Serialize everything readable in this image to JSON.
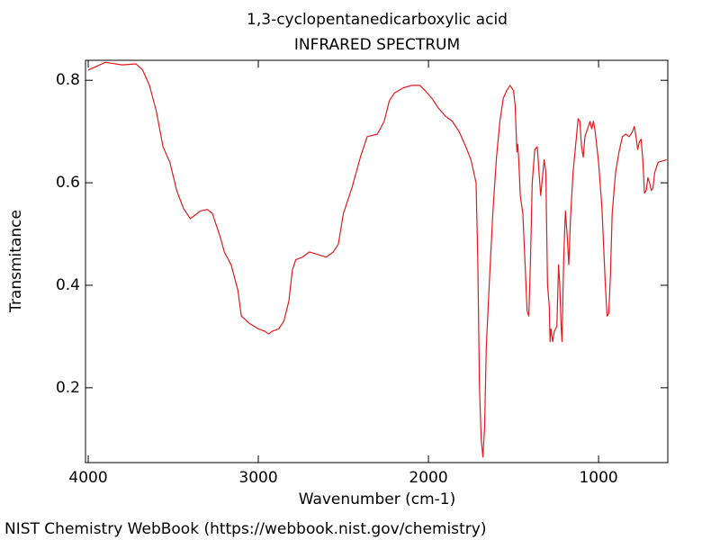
{
  "chart_data": {
    "type": "line",
    "title": "1,3-cyclopentanedicarboxylic acid",
    "subtitle": "INFRARED SPECTRUM",
    "x_label": "Wavenumber (cm-1)",
    "y_label": "Transmitance",
    "color": "#e41a1c",
    "xlim": [
      4016,
      593
    ],
    "ylim": [
      0.054,
      0.839
    ],
    "xticks": [
      4000,
      3000,
      2000,
      1000
    ],
    "yticks": [
      0.2,
      0.4,
      0.6,
      0.8
    ],
    "x": [
      4000,
      3900,
      3800,
      3720,
      3680,
      3640,
      3600,
      3560,
      3520,
      3480,
      3440,
      3400,
      3380,
      3340,
      3300,
      3270,
      3240,
      3220,
      3200,
      3160,
      3120,
      3100,
      3050,
      3000,
      2960,
      2940,
      2920,
      2880,
      2850,
      2820,
      2800,
      2780,
      2740,
      2700,
      2650,
      2600,
      2560,
      2530,
      2500,
      2450,
      2400,
      2360,
      2300,
      2260,
      2230,
      2200,
      2150,
      2100,
      2050,
      2020,
      1980,
      1940,
      1900,
      1860,
      1820,
      1780,
      1750,
      1720,
      1710,
      1700,
      1690,
      1680,
      1670,
      1660,
      1640,
      1620,
      1600,
      1580,
      1560,
      1540,
      1520,
      1500,
      1490,
      1480,
      1475,
      1470,
      1460,
      1445,
      1420,
      1410,
      1400,
      1390,
      1375,
      1360,
      1350,
      1340,
      1330,
      1320,
      1310,
      1300,
      1290,
      1285,
      1280,
      1270,
      1260,
      1245,
      1235,
      1228,
      1220,
      1215,
      1205,
      1195,
      1185,
      1175,
      1165,
      1150,
      1130,
      1120,
      1110,
      1100,
      1090,
      1080,
      1060,
      1050,
      1040,
      1030,
      1020,
      1000,
      980,
      960,
      950,
      940,
      930,
      920,
      900,
      880,
      860,
      840,
      820,
      800,
      790,
      780,
      770,
      760,
      750,
      740,
      730,
      720,
      710,
      700,
      690,
      680,
      670,
      650,
      600
    ],
    "values": [
      0.82,
      0.835,
      0.83,
      0.832,
      0.82,
      0.79,
      0.74,
      0.67,
      0.64,
      0.585,
      0.55,
      0.53,
      0.535,
      0.545,
      0.548,
      0.54,
      0.51,
      0.49,
      0.465,
      0.44,
      0.39,
      0.34,
      0.325,
      0.315,
      0.31,
      0.305,
      0.31,
      0.315,
      0.33,
      0.37,
      0.43,
      0.45,
      0.455,
      0.465,
      0.46,
      0.455,
      0.465,
      0.48,
      0.54,
      0.59,
      0.65,
      0.69,
      0.695,
      0.72,
      0.76,
      0.775,
      0.785,
      0.79,
      0.79,
      0.78,
      0.765,
      0.745,
      0.73,
      0.72,
      0.7,
      0.67,
      0.645,
      0.6,
      0.45,
      0.2,
      0.1,
      0.065,
      0.12,
      0.28,
      0.42,
      0.55,
      0.65,
      0.72,
      0.765,
      0.78,
      0.79,
      0.78,
      0.75,
      0.66,
      0.675,
      0.65,
      0.575,
      0.54,
      0.35,
      0.34,
      0.45,
      0.6,
      0.665,
      0.67,
      0.62,
      0.575,
      0.61,
      0.645,
      0.62,
      0.4,
      0.36,
      0.29,
      0.315,
      0.29,
      0.31,
      0.32,
      0.44,
      0.4,
      0.32,
      0.29,
      0.45,
      0.545,
      0.5,
      0.44,
      0.53,
      0.62,
      0.69,
      0.725,
      0.72,
      0.67,
      0.65,
      0.69,
      0.71,
      0.72,
      0.705,
      0.72,
      0.7,
      0.64,
      0.55,
      0.4,
      0.34,
      0.345,
      0.42,
      0.54,
      0.62,
      0.66,
      0.69,
      0.695,
      0.69,
      0.7,
      0.71,
      0.69,
      0.665,
      0.68,
      0.685,
      0.645,
      0.58,
      0.585,
      0.61,
      0.6,
      0.585,
      0.59,
      0.62,
      0.64,
      0.645
    ]
  },
  "footer": "NIST Chemistry WebBook (https://webbook.nist.gov/chemistry)"
}
